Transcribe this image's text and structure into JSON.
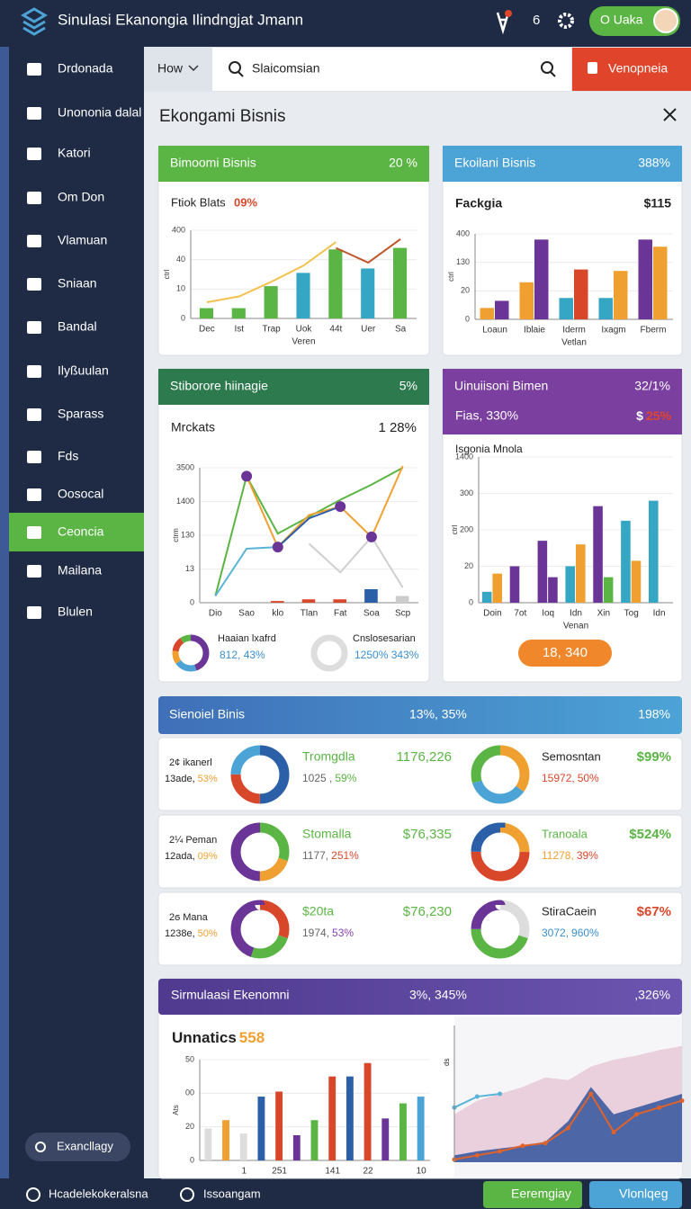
{
  "header": {
    "brand": "Sinulasi Ekanongia Ilindngjat Jmann",
    "notifications": "6",
    "user": "O Uaka"
  },
  "sidebar": {
    "items": [
      "Drdonada",
      "Unononia dalal",
      "Katori",
      "Om Don",
      "Vlamuan",
      "Sniaan",
      "Bandal",
      "Ilyßuulan",
      "Sparass",
      "Fds",
      "Oosocal",
      "Ceoncia",
      "Mailana",
      "Blulen"
    ],
    "active_item": 11,
    "footer_button": "Exancllagy"
  },
  "toolbar": {
    "dropdown": "How",
    "search_placeholder": "Slaicomsian",
    "button": "Venopneia"
  },
  "section_title": "Ekongami Bisnis",
  "cards": [
    {
      "header": "Bimoomi Bisnis",
      "header_value": "20 %",
      "subtitle": "Ftiok Blats",
      "subtitle_value": "09%",
      "chart": {
        "ylim": [
          0,
          60
        ],
        "yticks": [
          0,
          {
            "value": 20,
            "label": "10"
          },
          40,
          {
            "value": 60,
            "label": "400"
          }
        ],
        "ylabel": "ctrl",
        "categories": [
          "Dec",
          "Ist",
          "Trap",
          "Uok",
          "44t",
          "Uer",
          "Sa"
        ],
        "bars": [
          {
            "values": [
              7,
              7,
              22,
              31,
              47,
              34,
              48
            ],
            "colors": [
              "#5bb544",
              "#5bb544",
              "#5bb544",
              "#35a6c4",
              "#5bb544",
              "#35a6c4",
              "#5bb544"
            ]
          }
        ],
        "lines": [
          {
            "color": "#f2c14e",
            "values": [
              11,
              15,
              25,
              36,
              52,
              null,
              null
            ]
          },
          {
            "color": "#c0562a",
            "values": [
              null,
              null,
              null,
              null,
              48,
              38,
              54
            ]
          }
        ],
        "xlabel": "Veren"
      }
    },
    {
      "header": "Ekoilani Bisnis",
      "header_value": "388%",
      "subtitle": "Fackgia",
      "subtitle_value": "$115",
      "chart": {
        "ylim": [
          0,
          60
        ],
        "yticks": [
          0,
          20,
          {
            "value": 40,
            "label": "130"
          },
          {
            "value": 60,
            "label": "400"
          }
        ],
        "ylabel": "ctrl",
        "categories": [
          "Loaun",
          "Iblaie",
          "Iderm",
          "Ixagm",
          "Fberm"
        ],
        "bars": [
          {
            "values": [
              8,
              26,
              15,
              15,
              56
            ],
            "colors": [
              "#f0a030",
              "#f0a030",
              "#35a6c4",
              "#35a6c4",
              "#6a3597"
            ]
          },
          {
            "values": [
              13,
              56,
              35,
              34,
              51
            ],
            "colors": [
              "#6a3597",
              "#6a3597",
              "#d9472b",
              "#f0a030",
              "#f0a030"
            ]
          }
        ],
        "xlabel": "Vetlan"
      }
    },
    {
      "header": "Stiborore hiinagie",
      "header_value": "5%",
      "subtitle": "Mrckats",
      "subtitle_value": "1 28%",
      "chart": {
        "ylim": [
          0,
          80
        ],
        "yticks": [
          0,
          {
            "value": 20,
            "label": "13"
          },
          {
            "value": 40,
            "label": "130"
          },
          {
            "value": 60,
            "label": "1400"
          },
          {
            "value": 80,
            "label": "3500"
          }
        ],
        "ylabel": "ctrm",
        "categories": [
          "Dio",
          "Sao",
          "klo",
          "Tlan",
          "Fat",
          "Soa",
          "Scp"
        ],
        "bars": [
          {
            "values": [
              null,
              null,
              1,
              2,
              2,
              8,
              4
            ],
            "colors": [
              null,
              null,
              "#d9472b",
              "#d9472b",
              "#d9472b",
              "#2b5fa8",
              "#cccccc"
            ]
          }
        ],
        "lines": [
          {
            "color": "#5bb544",
            "values": [
              4,
              75,
              41,
              51,
              61,
              70,
              80
            ]
          },
          {
            "color": "#f0a030",
            "values": [
              null,
              75,
              33,
              52,
              57,
              39,
              81
            ]
          },
          {
            "color": "#5ab4d6",
            "values": [
              4,
              32,
              33,
              null,
              null,
              null,
              null
            ]
          },
          {
            "color": "#2b5fa8",
            "values": [
              null,
              null,
              33,
              50,
              57,
              null,
              null
            ]
          },
          {
            "color": "#cfcfcf",
            "values": [
              null,
              null,
              null,
              35,
              18,
              39,
              9
            ]
          }
        ],
        "points": [
          {
            "color": "#6a3597",
            "values": [
              null,
              75,
              33,
              null,
              57,
              39,
              null
            ]
          }
        ]
      },
      "donuts": [
        {
          "label": "Haaian lxafrd",
          "value": "812, 43%",
          "values": [
            45,
            20,
            12,
            13,
            10
          ],
          "colors": [
            "#6a3597",
            "#4ca3d6",
            "#f0a030",
            "#d9472b",
            "#5bb544"
          ]
        },
        {
          "label": "Cnslosesarian",
          "value": "1250% 343%",
          "values": [
            100
          ],
          "colors": [
            "#dddddd"
          ]
        }
      ]
    },
    {
      "header": "Uinuiisoni Bimen",
      "header_value": "32/1%",
      "subtitle": "Fias, 330%",
      "currency": "$",
      "subtitle_value": "25%",
      "chart_title": "Isgonia Mnola",
      "chart": {
        "ylim": [
          0,
          80
        ],
        "yticks": [
          0,
          20,
          {
            "value": 40,
            "label": "200"
          },
          {
            "value": 60,
            "label": "300"
          },
          {
            "value": 80,
            "label": "1400"
          }
        ],
        "ylabel": "ctrl",
        "categories": [
          "Doin",
          "7ot",
          "Ioq",
          "Idn",
          "Xin",
          "Tog",
          "Idn"
        ],
        "bars": [
          {
            "values": [
              6,
              20,
              34,
              20,
              53,
              45,
              56
            ],
            "colors": [
              "#35a6c4",
              "#6a3597",
              "#6a3597",
              "#35a6c4",
              "#6a3597",
              "#35a6c4",
              "#35a6c4"
            ]
          },
          {
            "values": [
              16,
              null,
              14,
              32,
              14,
              23,
              null
            ],
            "colors": [
              "#f0a030",
              null,
              "#6a3597",
              "#f0a030",
              "#5bb544",
              "#f0a030",
              null
            ]
          }
        ],
        "xlabel": "Venan"
      },
      "button": "18, 340"
    }
  ],
  "summary": {
    "header": "Sienoiel Binis",
    "header_value": "13%, 35%",
    "header_right": "198%",
    "rows": [
      {
        "title": "2¢ ikanerl",
        "sub": "13ade,",
        "sub_pct": "53%",
        "donut": {
          "values": [
            50,
            25,
            25
          ],
          "colors": [
            "#2b5fa8",
            "#d9472b",
            "#4ca3d6"
          ]
        },
        "name": "Tromgdla",
        "amount": "1176,226",
        "detail": "1025 ,",
        "detail_pct": "59%",
        "donut2": {
          "values": [
            35,
            35,
            30
          ],
          "colors": [
            "#f0a030",
            "#4ca3d6",
            "#5bb544"
          ]
        },
        "name2": "Semosntan",
        "amount2": "$99%",
        "detail2": "15972,",
        "detail2_pct": "50%"
      },
      {
        "title": "2¼ Peman",
        "sub": "12ada,",
        "sub_pct": "09%",
        "donut": {
          "values": [
            30,
            20,
            50
          ],
          "colors": [
            "#5bb544",
            "#f0a030",
            "#6a3597"
          ]
        },
        "name": "Stomalla",
        "amount": "$76,335",
        "detail": "1177,",
        "detail_pct": "251%",
        "donut2": {
          "values": [
            25,
            50,
            25
          ],
          "colors": [
            "#f0a030",
            "#d9472b",
            "#2b5fa8"
          ]
        },
        "name2": "Tranoala",
        "amount2": "$524%",
        "detail2": "11278,",
        "detail2_pct": "39%"
      },
      {
        "title": "2ϭ Mana",
        "sub": "1238e,",
        "sub_pct": "50%",
        "donut": {
          "values": [
            30,
            25,
            45
          ],
          "colors": [
            "#d9472b",
            "#5bb544",
            "#6a3597"
          ]
        },
        "name": "$20ta",
        "amount": "$76,230",
        "detail": "1974,",
        "detail_pct": "53%",
        "donut2": {
          "values": [
            30,
            45,
            25
          ],
          "colors": [
            "#dddddd",
            "#5bb544",
            "#6a3597"
          ]
        },
        "name2": "StiraCaein",
        "amount2": "$67%",
        "detail2": "3072,",
        "detail2_pct": "960%"
      }
    ]
  },
  "simulation": {
    "header": "Sirmulaasi Ekenomni",
    "header_value": "3%, 345%",
    "header_right": ",326%",
    "chart_title": "Unnatics",
    "chart_value": "558",
    "chart": {
      "ylim": [
        0,
        60
      ],
      "yticks": [
        0,
        20,
        {
          "value": 40,
          "label": "00"
        },
        {
          "value": 60,
          "label": "50"
        }
      ],
      "ylabel": "Ats",
      "categories": [
        null,
        null,
        "1",
        null,
        "251",
        null,
        null,
        "141",
        null,
        "22",
        null,
        null,
        "10"
      ],
      "bars": [
        {
          "values": [
            19,
            24,
            16,
            38,
            41,
            15,
            24,
            50,
            50,
            58,
            25,
            34,
            38
          ],
          "colors": [
            "#dddddd",
            "#f0a030",
            "#dddddd",
            "#2b5fa8",
            "#d9472b",
            "#6a3597",
            "#5bb544",
            "#d9472b",
            "#2b5fa8",
            "#d9472b",
            "#6a3597",
            "#5bb544",
            "#4ca3d6"
          ]
        }
      ]
    },
    "area": {
      "ylim": [
        0,
        100
      ],
      "ylabel": "ds",
      "areas": [
        {
          "color": "#e9cbd8",
          "values": [
            35,
            45,
            50,
            55,
            62,
            60,
            70,
            75,
            78,
            82,
            85
          ]
        },
        {
          "color": "#3b5aa0",
          "values": [
            5,
            8,
            10,
            12,
            15,
            30,
            55,
            35,
            40,
            45,
            50
          ]
        }
      ],
      "lines": [
        {
          "color": "#e0622b",
          "values": [
            2,
            5,
            8,
            12,
            14,
            25,
            50,
            22,
            35,
            40,
            45
          ]
        },
        {
          "color": "#5ab4d6",
          "values": [
            40,
            48,
            50,
            null,
            null,
            null,
            null,
            null,
            null,
            null,
            null
          ]
        }
      ]
    }
  },
  "footer": {
    "left": "Hcadelekokeralsna",
    "middle": "Issoangam",
    "button1": "Eeremgiay",
    "button2": "Vlonlqeg"
  }
}
